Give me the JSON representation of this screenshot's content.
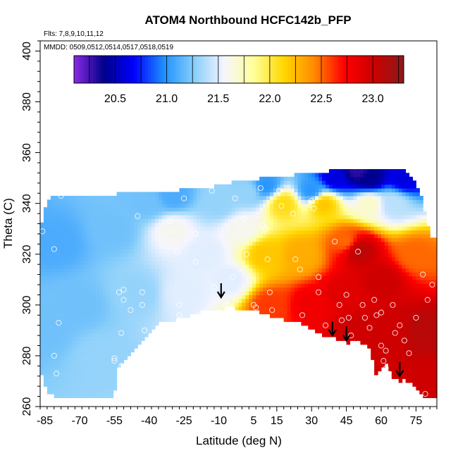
{
  "chart_data": {
    "type": "heatmap",
    "title": "ATOM4 Northbound HCFC142b_PFP",
    "subtitle_flights": "Flts: 7,8,9,10,11,12",
    "subtitle_dates": "MMDD: 0509,0512,0514,0517,0518,0519",
    "xlabel": "Latitude (deg N)",
    "ylabel": "Theta (C)",
    "xlim": [
      -87,
      84
    ],
    "ylim": [
      260,
      404
    ],
    "x_ticks": [
      "-85",
      "-70",
      "-55",
      "-40",
      "-25",
      "-10",
      "5",
      "15",
      "30",
      "45",
      "60",
      "75"
    ],
    "y_ticks": [
      "260",
      "280",
      "300",
      "320",
      "340",
      "360",
      "380",
      "400"
    ],
    "colorbar": {
      "range": [
        20.1,
        23.3
      ],
      "ticks": [
        "20.5",
        "21.0",
        "21.5",
        "22.0",
        "22.5",
        "23.0"
      ],
      "colors": [
        "#8a2be2",
        "#00008b",
        "#0000ff",
        "#1e90ff",
        "#87cefa",
        "#f5f5ff",
        "#ffff99",
        "#ffd700",
        "#ff8c00",
        "#ff0000",
        "#cc0000",
        "#8b1a1a"
      ]
    },
    "coverage": {
      "top_theta": [
        [
          -87,
          330
        ],
        [
          -84,
          342
        ],
        [
          -80,
          343
        ],
        [
          -55,
          343
        ],
        [
          -53,
          344
        ],
        [
          -40,
          345
        ],
        [
          -30,
          345
        ],
        [
          -15,
          346
        ],
        [
          -10,
          347
        ],
        [
          -5,
          348
        ],
        [
          0,
          349
        ],
        [
          10,
          350
        ],
        [
          20,
          351
        ],
        [
          30,
          352
        ],
        [
          40,
          353
        ],
        [
          50,
          354
        ],
        [
          60,
          354
        ],
        [
          70,
          354
        ],
        [
          76,
          346
        ],
        [
          78,
          340
        ],
        [
          80,
          332
        ],
        [
          82,
          326
        ]
      ],
      "bottom_theta": [
        [
          -87,
          275
        ],
        [
          -84,
          266
        ],
        [
          -80,
          264
        ],
        [
          -55,
          264
        ],
        [
          -54,
          275
        ],
        [
          -50,
          278
        ],
        [
          -45,
          284
        ],
        [
          -40,
          289
        ],
        [
          -35,
          293
        ],
        [
          -25,
          295
        ],
        [
          -15,
          298
        ],
        [
          -5,
          299
        ],
        [
          5,
          298
        ],
        [
          15,
          295
        ],
        [
          25,
          293
        ],
        [
          35,
          288
        ],
        [
          40,
          287
        ],
        [
          45,
          285
        ],
        [
          50,
          286
        ],
        [
          55,
          283
        ],
        [
          58,
          272
        ],
        [
          62,
          277
        ],
        [
          65,
          271
        ],
        [
          68,
          270
        ],
        [
          70,
          271
        ],
        [
          74,
          268
        ],
        [
          78,
          264
        ],
        [
          82,
          264
        ]
      ]
    },
    "field_anchors": [
      {
        "lat": -85,
        "theta": 290,
        "value": 21.2
      },
      {
        "lat": -80,
        "theta": 325,
        "value": 21.1
      },
      {
        "lat": -70,
        "theta": 300,
        "value": 21.2
      },
      {
        "lat": -60,
        "theta": 280,
        "value": 21.3
      },
      {
        "lat": -55,
        "theta": 330,
        "value": 21.2
      },
      {
        "lat": -45,
        "theta": 305,
        "value": 21.3
      },
      {
        "lat": -40,
        "theta": 340,
        "value": 21.2
      },
      {
        "lat": -30,
        "theta": 330,
        "value": 21.6
      },
      {
        "lat": -25,
        "theta": 305,
        "value": 21.5
      },
      {
        "lat": -15,
        "theta": 320,
        "value": 21.5
      },
      {
        "lat": -10,
        "theta": 340,
        "value": 21.3
      },
      {
        "lat": -5,
        "theta": 310,
        "value": 21.5
      },
      {
        "lat": 0,
        "theta": 330,
        "value": 21.6
      },
      {
        "lat": 3,
        "theta": 345,
        "value": 21.3
      },
      {
        "lat": 10,
        "theta": 320,
        "value": 22.2
      },
      {
        "lat": 12,
        "theta": 300,
        "value": 22.6
      },
      {
        "lat": 18,
        "theta": 340,
        "value": 22.1
      },
      {
        "lat": 25,
        "theta": 320,
        "value": 22.3
      },
      {
        "lat": 30,
        "theta": 300,
        "value": 22.8
      },
      {
        "lat": 35,
        "theta": 340,
        "value": 22.2
      },
      {
        "lat": 45,
        "theta": 325,
        "value": 22.5
      },
      {
        "lat": 45,
        "theta": 305,
        "value": 22.9
      },
      {
        "lat": 50,
        "theta": 322,
        "value": 23.1
      },
      {
        "lat": 50,
        "theta": 290,
        "value": 23.0
      },
      {
        "lat": 55,
        "theta": 340,
        "value": 21.7
      },
      {
        "lat": 55,
        "theta": 350,
        "value": 20.4
      },
      {
        "lat": 60,
        "theta": 310,
        "value": 23.0
      },
      {
        "lat": 65,
        "theta": 340,
        "value": 21.4
      },
      {
        "lat": 65,
        "theta": 290,
        "value": 23.0
      },
      {
        "lat": 70,
        "theta": 350,
        "value": 20.6
      },
      {
        "lat": 75,
        "theta": 320,
        "value": 22.5
      },
      {
        "lat": 78,
        "theta": 290,
        "value": 23.1
      },
      {
        "lat": 78,
        "theta": 270,
        "value": 23.0
      },
      {
        "lat": 30,
        "theta": 345,
        "value": 21.0
      },
      {
        "lat": 10,
        "theta": 347,
        "value": 21.0
      },
      {
        "lat": -30,
        "theta": 343,
        "value": 21.1
      },
      {
        "lat": 40,
        "theta": 350,
        "value": 20.6
      },
      {
        "lat": 50,
        "theta": 353,
        "value": 20.3
      }
    ],
    "observations": [
      [
        -86,
        329
      ],
      [
        -81,
        322
      ],
      [
        -78,
        343
      ],
      [
        -79,
        293
      ],
      [
        -81,
        280
      ],
      [
        -80,
        273
      ],
      [
        -55,
        279
      ],
      [
        -55,
        278
      ],
      [
        -52,
        276
      ],
      [
        -52,
        289
      ],
      [
        -53,
        305
      ],
      [
        -51,
        306
      ],
      [
        -51,
        302
      ],
      [
        -48,
        298
      ],
      [
        -45,
        335
      ],
      [
        -43,
        305
      ],
      [
        -43,
        300
      ],
      [
        -42,
        290
      ],
      [
        -35,
        290
      ],
      [
        -31,
        333
      ],
      [
        -28,
        321
      ],
      [
        -27,
        300
      ],
      [
        -27,
        296
      ],
      [
        -25,
        342
      ],
      [
        -20,
        328
      ],
      [
        -20,
        317
      ],
      [
        -18,
        296
      ],
      [
        -13,
        345
      ],
      [
        -12,
        307
      ],
      [
        -7,
        300
      ],
      [
        -6,
        300
      ],
      [
        -4,
        311
      ],
      [
        -3,
        342
      ],
      [
        1,
        334
      ],
      [
        2,
        320
      ],
      [
        3,
        310
      ],
      [
        5,
        300
      ],
      [
        6,
        299
      ],
      [
        8,
        346
      ],
      [
        9,
        331
      ],
      [
        10,
        330
      ],
      [
        11,
        318
      ],
      [
        12,
        305
      ],
      [
        13,
        298
      ],
      [
        14,
        293
      ],
      [
        16,
        345
      ],
      [
        17,
        339
      ],
      [
        22,
        336
      ],
      [
        23,
        318
      ],
      [
        25,
        314
      ],
      [
        26,
        296
      ],
      [
        30,
        341
      ],
      [
        31,
        338
      ],
      [
        33,
        311
      ],
      [
        33,
        305
      ],
      [
        36,
        292
      ],
      [
        36,
        285
      ],
      [
        40,
        325
      ],
      [
        42,
        300
      ],
      [
        43,
        294
      ],
      [
        45,
        304
      ],
      [
        46,
        295
      ],
      [
        47,
        288
      ],
      [
        48,
        284
      ],
      [
        50,
        321
      ],
      [
        52,
        300
      ],
      [
        53,
        295
      ],
      [
        55,
        291
      ],
      [
        55,
        272
      ],
      [
        57,
        302
      ],
      [
        58,
        296
      ],
      [
        60,
        284
      ],
      [
        61,
        278
      ],
      [
        62,
        275
      ],
      [
        63,
        273
      ],
      [
        64,
        268
      ],
      [
        60,
        297
      ],
      [
        62,
        282
      ],
      [
        65,
        300
      ],
      [
        66,
        289
      ],
      [
        68,
        292
      ],
      [
        70,
        286
      ],
      [
        72,
        281
      ],
      [
        75,
        295
      ],
      [
        75,
        265
      ],
      [
        78,
        312
      ],
      [
        80,
        302
      ],
      [
        79,
        265
      ],
      [
        82,
        308
      ]
    ],
    "arrows": [
      {
        "lat": -9,
        "theta": 303
      },
      {
        "lat": 39,
        "theta": 288
      },
      {
        "lat": 45,
        "theta": 286
      },
      {
        "lat": 68,
        "theta": 272
      }
    ]
  }
}
